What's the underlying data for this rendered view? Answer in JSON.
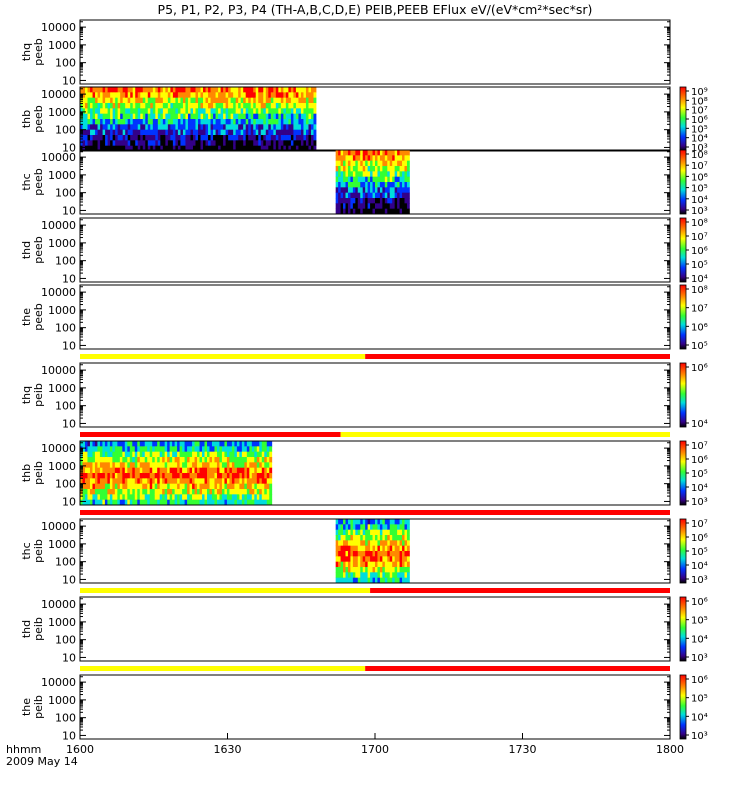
{
  "title": "P5, P1, P2, P3, P4 (TH-A,B,C,D,E) PEIB,PEEB EFlux eV/(eV*cm²*sec*sr)",
  "colors": {
    "yellow": "#ffff00",
    "red": "#ff0000",
    "axis": "#000000"
  },
  "chart_data": {
    "type": "heatmap",
    "x_ticks": [
      "1600",
      "1630",
      "1700",
      "1730",
      "1800"
    ],
    "x_corner_label": "hhmm",
    "date_label": "2009 May 14",
    "y_ticks": [
      "10",
      "100",
      "1000",
      "10000"
    ],
    "panels": [
      {
        "ylabel": [
          "thq",
          "peeb"
        ],
        "has_colorbar": false,
        "data": [],
        "cb_labels": []
      },
      {
        "ylabel": [
          "thb",
          "peeb"
        ],
        "has_colorbar": true,
        "data": [
          {
            "start": "1600",
            "end": "1648"
          }
        ],
        "cb_labels": [
          "10⁹",
          "10⁸",
          "10⁷",
          "10⁶",
          "10⁵",
          "10⁴",
          "10³"
        ]
      },
      {
        "ylabel": [
          "thc",
          "peeb"
        ],
        "has_colorbar": true,
        "data": [
          {
            "start": "1652",
            "end": "1707"
          }
        ],
        "cb_labels": [
          "10⁸",
          "10⁷",
          "10⁶",
          "10⁵",
          "10⁴",
          "10³"
        ]
      },
      {
        "ylabel": [
          "thd",
          "peeb"
        ],
        "has_colorbar": true,
        "data": [],
        "cb_labels": [
          "10⁸",
          "10⁷",
          "10⁶",
          "10⁵",
          "10⁴"
        ]
      },
      {
        "ylabel": [
          "the",
          "peeb"
        ],
        "has_colorbar": true,
        "data": [],
        "cb_labels": [
          "10⁸",
          "10⁷",
          "10⁶",
          "10⁵"
        ],
        "bar_below": [
          {
            "start": "1600",
            "end": "1658",
            "color": "yellow"
          },
          {
            "start": "1658",
            "end": "1800",
            "color": "red"
          }
        ]
      },
      {
        "ylabel": [
          "thq",
          "peib"
        ],
        "has_colorbar": true,
        "data": [],
        "cb_labels": [
          "10⁶",
          "10⁴"
        ],
        "bar_below": [
          {
            "start": "1600",
            "end": "1653",
            "color": "red"
          },
          {
            "start": "1653",
            "end": "1800",
            "color": "yellow"
          }
        ]
      },
      {
        "ylabel": [
          "thb",
          "peib"
        ],
        "has_colorbar": true,
        "data": [
          {
            "start": "1600",
            "end": "1639"
          }
        ],
        "cb_labels": [
          "10⁷",
          "10⁶",
          "10⁵",
          "10⁴",
          "10³"
        ],
        "bar_below": [
          {
            "start": "1600",
            "end": "1800",
            "color": "red"
          }
        ]
      },
      {
        "ylabel": [
          "thc",
          "peib"
        ],
        "has_colorbar": true,
        "data": [
          {
            "start": "1652",
            "end": "1707"
          }
        ],
        "cb_labels": [
          "10⁷",
          "10⁶",
          "10⁵",
          "10⁴",
          "10³"
        ],
        "bar_below": [
          {
            "start": "1600",
            "end": "1659",
            "color": "yellow"
          },
          {
            "start": "1659",
            "end": "1800",
            "color": "red"
          }
        ]
      },
      {
        "ylabel": [
          "thd",
          "peib"
        ],
        "has_colorbar": true,
        "data": [],
        "cb_labels": [
          "10⁶",
          "10⁵",
          "10⁴",
          "10³"
        ],
        "bar_below": [
          {
            "start": "1600",
            "end": "1658",
            "color": "yellow"
          },
          {
            "start": "1658",
            "end": "1800",
            "color": "red"
          }
        ]
      },
      {
        "ylabel": [
          "the",
          "peib"
        ],
        "has_colorbar": true,
        "data": [],
        "cb_labels": [
          "10⁶",
          "10⁵",
          "10⁴",
          "10³"
        ]
      }
    ]
  }
}
